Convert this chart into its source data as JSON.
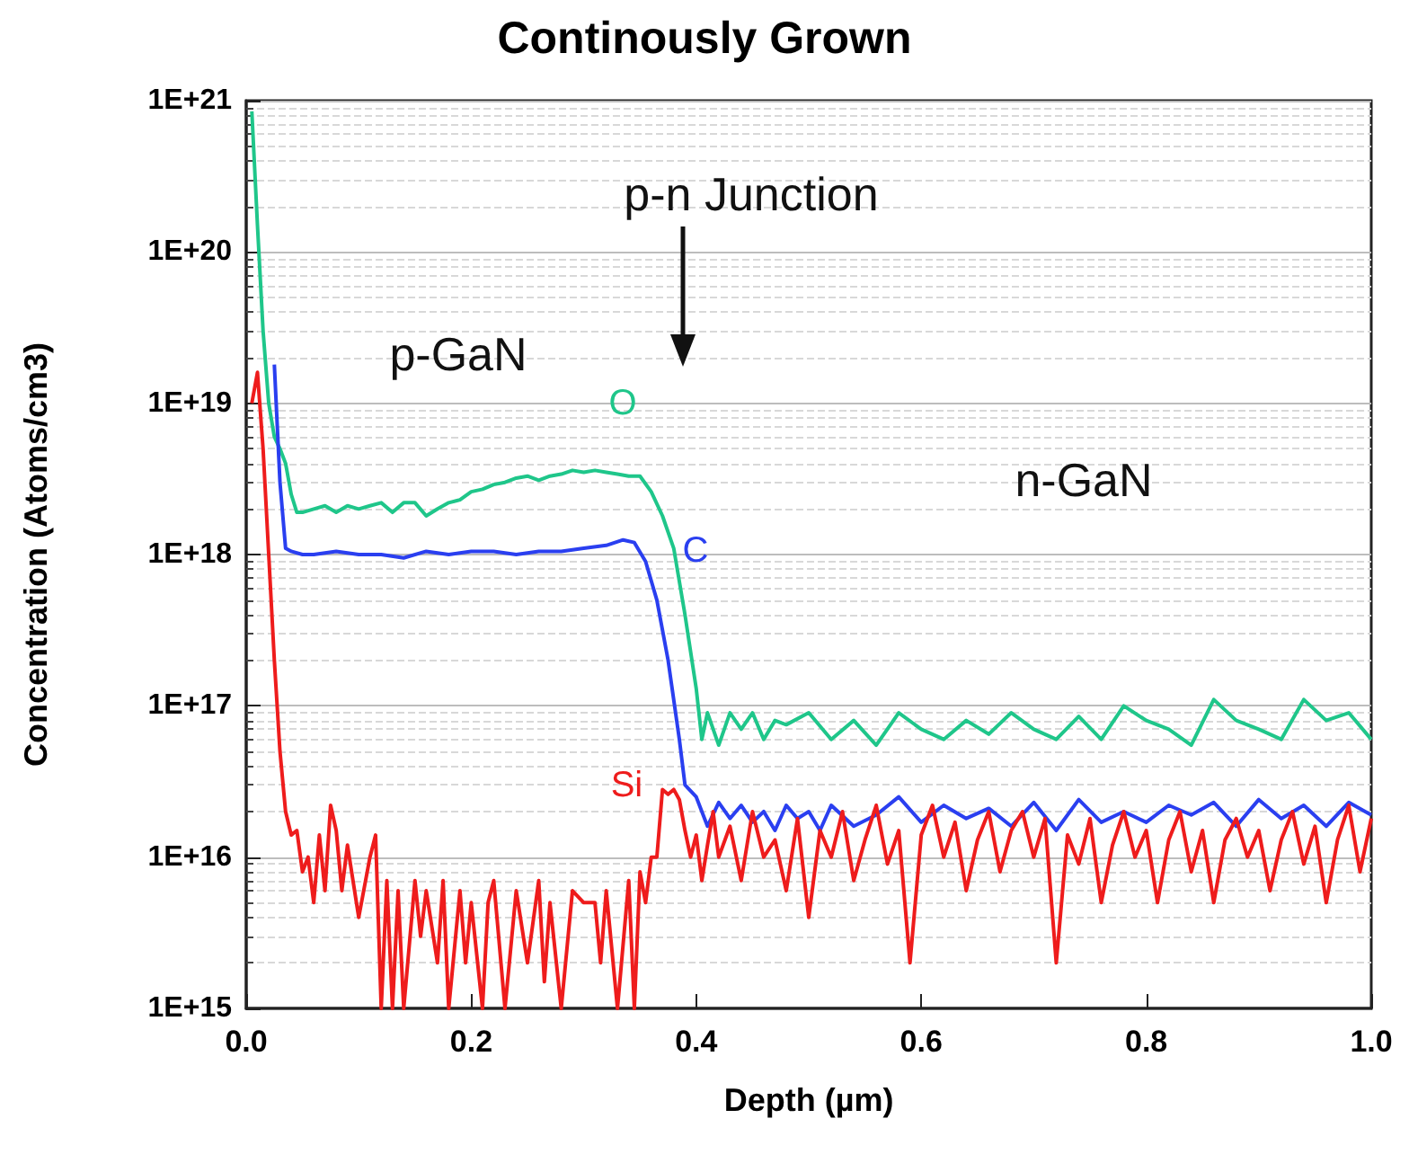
{
  "chart_data": {
    "type": "line",
    "title": "Continously Grown",
    "xlabel": "Depth (µm)",
    "ylabel": "Concentration (Atoms/cm3)",
    "log": "y",
    "grid": "y",
    "legend": false,
    "marker": "none",
    "line_style": "solid",
    "xlim": [
      0,
      1
    ],
    "xticks": [
      {
        "value": 0,
        "label": "0.0"
      },
      {
        "value": 0.2,
        "label": "0.2"
      },
      {
        "value": 0.4,
        "label": "0.4"
      },
      {
        "value": 0.6,
        "label": "0.6"
      },
      {
        "value": 0.8,
        "label": "0.8"
      },
      {
        "value": 1,
        "label": "1.0"
      }
    ],
    "ylim": [
      1000000000000000.0,
      1e+21
    ],
    "yticks": [
      {
        "value": 1000000000000000.0,
        "label": "1E+15"
      },
      {
        "value": 1e+16,
        "label": "1E+16"
      },
      {
        "value": 1e+17,
        "label": "1E+17"
      },
      {
        "value": 1e+18,
        "label": "1E+18"
      },
      {
        "value": 1e+19,
        "label": "1E+19"
      },
      {
        "value": 1e+20,
        "label": "1E+20"
      },
      {
        "value": 1e+21,
        "label": "1E+21"
      }
    ],
    "annotations": [
      "p-n Junction",
      "p-GaN",
      "n-GaN"
    ],
    "series": [
      {
        "name": "O",
        "color": "#1fc68a",
        "x": [
          0.005,
          0.01,
          0.015,
          0.02,
          0.025,
          0.03,
          0.035,
          0.04,
          0.045,
          0.05,
          0.06,
          0.07,
          0.08,
          0.09,
          0.1,
          0.11,
          0.12,
          0.13,
          0.14,
          0.15,
          0.16,
          0.17,
          0.18,
          0.19,
          0.2,
          0.21,
          0.22,
          0.23,
          0.24,
          0.25,
          0.26,
          0.27,
          0.28,
          0.29,
          0.3,
          0.31,
          0.32,
          0.33,
          0.34,
          0.35,
          0.36,
          0.37,
          0.38,
          0.39,
          0.4,
          0.405,
          0.41,
          0.42,
          0.43,
          0.44,
          0.45,
          0.46,
          0.47,
          0.48,
          0.5,
          0.52,
          0.54,
          0.56,
          0.58,
          0.6,
          0.62,
          0.64,
          0.66,
          0.68,
          0.7,
          0.72,
          0.74,
          0.76,
          0.78,
          0.8,
          0.82,
          0.84,
          0.86,
          0.88,
          0.9,
          0.92,
          0.94,
          0.96,
          0.98,
          1.0
        ],
        "values": [
          8.5e+20,
          1.5e+20,
          3e+19,
          1e+19,
          6e+18,
          5e+18,
          4e+18,
          2.5e+18,
          1.9e+18,
          1.9e+18,
          2e+18,
          2.1e+18,
          1.9e+18,
          2.1e+18,
          2e+18,
          2.1e+18,
          2.2e+18,
          1.9e+18,
          2.2e+18,
          2.2e+18,
          1.8e+18,
          2e+18,
          2.2e+18,
          2.3e+18,
          2.6e+18,
          2.7e+18,
          2.9e+18,
          3e+18,
          3.2e+18,
          3.3e+18,
          3.1e+18,
          3.3e+18,
          3.4e+18,
          3.6e+18,
          3.5e+18,
          3.6e+18,
          3.5e+18,
          3.4e+18,
          3.3e+18,
          3.3e+18,
          2.6e+18,
          1.8e+18,
          1.1e+18,
          4e+17,
          1.3e+17,
          6e+16,
          9e+16,
          5.5e+16,
          9e+16,
          7e+16,
          9e+16,
          6e+16,
          8e+16,
          7.5e+16,
          9e+16,
          6e+16,
          8e+16,
          5.5e+16,
          9e+16,
          7e+16,
          6e+16,
          8e+16,
          6.5e+16,
          9e+16,
          7e+16,
          6e+16,
          8.5e+16,
          6e+16,
          1e+17,
          8e+16,
          7e+16,
          5.5e+16,
          1.1e+17,
          8e+16,
          7e+16,
          6e+16,
          1.1e+17,
          8e+16,
          9e+16,
          6e+16
        ]
      },
      {
        "name": "C",
        "color": "#2a3ff0",
        "x": [
          0.025,
          0.03,
          0.035,
          0.04,
          0.05,
          0.06,
          0.08,
          0.1,
          0.12,
          0.14,
          0.16,
          0.18,
          0.2,
          0.22,
          0.24,
          0.26,
          0.28,
          0.3,
          0.32,
          0.335,
          0.345,
          0.355,
          0.365,
          0.375,
          0.385,
          0.39,
          0.4,
          0.41,
          0.42,
          0.43,
          0.44,
          0.45,
          0.46,
          0.47,
          0.48,
          0.49,
          0.5,
          0.51,
          0.52,
          0.54,
          0.56,
          0.58,
          0.6,
          0.62,
          0.64,
          0.66,
          0.68,
          0.7,
          0.72,
          0.74,
          0.76,
          0.78,
          0.8,
          0.82,
          0.84,
          0.86,
          0.88,
          0.9,
          0.92,
          0.94,
          0.96,
          0.98,
          1.0
        ],
        "values": [
          1.8e+19,
          3e+18,
          1.1e+18,
          1.05e+18,
          1e+18,
          1e+18,
          1.05e+18,
          1e+18,
          1e+18,
          9.5e+17,
          1.05e+18,
          1e+18,
          1.05e+18,
          1.05e+18,
          1e+18,
          1.05e+18,
          1.05e+18,
          1.1e+18,
          1.15e+18,
          1.25e+18,
          1.2e+18,
          9e+17,
          5e+17,
          2e+17,
          6e+16,
          3e+16,
          2.5e+16,
          1.6e+16,
          2.3e+16,
          1.8e+16,
          2.2e+16,
          1.7e+16,
          2e+16,
          1.5e+16,
          2.2e+16,
          1.8e+16,
          2e+16,
          1.5e+16,
          2.2e+16,
          1.6e+16,
          1.9e+16,
          2.5e+16,
          1.7e+16,
          2.2e+16,
          1.8e+16,
          2.1e+16,
          1.6e+16,
          2.3e+16,
          1.5e+16,
          2.4e+16,
          1.7e+16,
          2e+16,
          1.7e+16,
          2.2e+16,
          1.9e+16,
          2.3e+16,
          1.6e+16,
          2.4e+16,
          1.8e+16,
          2.2e+16,
          1.6e+16,
          2.3e+16,
          1.9e+16
        ]
      },
      {
        "name": "Si",
        "color": "#ee1c1c",
        "x": [
          0.005,
          0.01,
          0.015,
          0.02,
          0.025,
          0.03,
          0.035,
          0.04,
          0.045,
          0.05,
          0.055,
          0.06,
          0.065,
          0.07,
          0.075,
          0.08,
          0.085,
          0.09,
          0.1,
          0.11,
          0.115,
          0.12,
          0.125,
          0.13,
          0.135,
          0.14,
          0.15,
          0.155,
          0.16,
          0.17,
          0.175,
          0.18,
          0.19,
          0.195,
          0.2,
          0.21,
          0.215,
          0.22,
          0.23,
          0.24,
          0.25,
          0.26,
          0.265,
          0.27,
          0.28,
          0.29,
          0.3,
          0.31,
          0.315,
          0.32,
          0.33,
          0.34,
          0.345,
          0.35,
          0.355,
          0.36,
          0.365,
          0.37,
          0.375,
          0.38,
          0.385,
          0.39,
          0.395,
          0.4,
          0.405,
          0.41,
          0.415,
          0.42,
          0.43,
          0.44,
          0.45,
          0.46,
          0.47,
          0.48,
          0.49,
          0.5,
          0.51,
          0.52,
          0.53,
          0.54,
          0.55,
          0.56,
          0.57,
          0.58,
          0.59,
          0.6,
          0.61,
          0.62,
          0.63,
          0.64,
          0.65,
          0.66,
          0.67,
          0.68,
          0.69,
          0.7,
          0.71,
          0.72,
          0.73,
          0.74,
          0.75,
          0.76,
          0.77,
          0.78,
          0.79,
          0.8,
          0.81,
          0.82,
          0.83,
          0.84,
          0.85,
          0.86,
          0.87,
          0.88,
          0.89,
          0.9,
          0.91,
          0.92,
          0.93,
          0.94,
          0.95,
          0.96,
          0.97,
          0.98,
          0.99,
          1.0
        ],
        "values": [
          1e+19,
          1.6e+19,
          5e+18,
          1e+18,
          2e+17,
          5e+16,
          2e+16,
          1.4e+16,
          1.5e+16,
          8000000000000000.0,
          1e+16,
          5000000000000000.0,
          1.4e+16,
          6000000000000000.0,
          2.2e+16,
          1.5e+16,
          6000000000000000.0,
          1.2e+16,
          4000000000000000.0,
          1e+16,
          1.4e+16,
          1000000000000000.0,
          7000000000000000.0,
          1000000000000000.0,
          6000000000000000.0,
          1000000000000000.0,
          7000000000000000.0,
          3000000000000000.0,
          6000000000000000.0,
          2000000000000000.0,
          7000000000000000.0,
          1000000000000000.0,
          6000000000000000.0,
          2000000000000000.0,
          5000000000000000.0,
          1000000000000000.0,
          5000000000000000.0,
          7000000000000000.0,
          1000000000000000.0,
          6000000000000000.0,
          2000000000000000.0,
          7000000000000000.0,
          1500000000000000.0,
          5000000000000000.0,
          1000000000000000.0,
          6000000000000000.0,
          5000000000000000.0,
          5000000000000000.0,
          2000000000000000.0,
          6000000000000000.0,
          1000000000000000.0,
          7000000000000000.0,
          1000000000000000.0,
          8000000000000000.0,
          5000000000000000.0,
          1e+16,
          1e+16,
          2.8e+16,
          2.6e+16,
          2.8e+16,
          2.4e+16,
          1.5e+16,
          1e+16,
          1.4e+16,
          7000000000000000.0,
          1.2e+16,
          2e+16,
          1e+16,
          1.6e+16,
          7000000000000000.0,
          2e+16,
          1e+16,
          1.3e+16,
          6000000000000000.0,
          1.8e+16,
          4000000000000000.0,
          1.5e+16,
          1e+16,
          2e+16,
          7000000000000000.0,
          1.3e+16,
          2.2e+16,
          9000000000000000.0,
          1.5e+16,
          2000000000000000.0,
          1.4e+16,
          2.2e+16,
          1e+16,
          1.7e+16,
          6000000000000000.0,
          1.3e+16,
          2e+16,
          8000000000000000.0,
          1.5e+16,
          2e+16,
          1e+16,
          1.8e+16,
          2000000000000000.0,
          1.4e+16,
          9000000000000000.0,
          1.8e+16,
          5000000000000000.0,
          1.2e+16,
          2e+16,
          1e+16,
          1.5e+16,
          5000000000000000.0,
          1.3e+16,
          2e+16,
          8000000000000000.0,
          1.5e+16,
          5000000000000000.0,
          1.3e+16,
          1.8e+16,
          1e+16,
          1.5e+16,
          6000000000000000.0,
          1.3e+16,
          2e+16,
          9000000000000000.0,
          1.6e+16,
          5000000000000000.0,
          1.3e+16,
          2.2e+16,
          8000000000000000.0,
          1.8e+16
        ]
      }
    ]
  }
}
